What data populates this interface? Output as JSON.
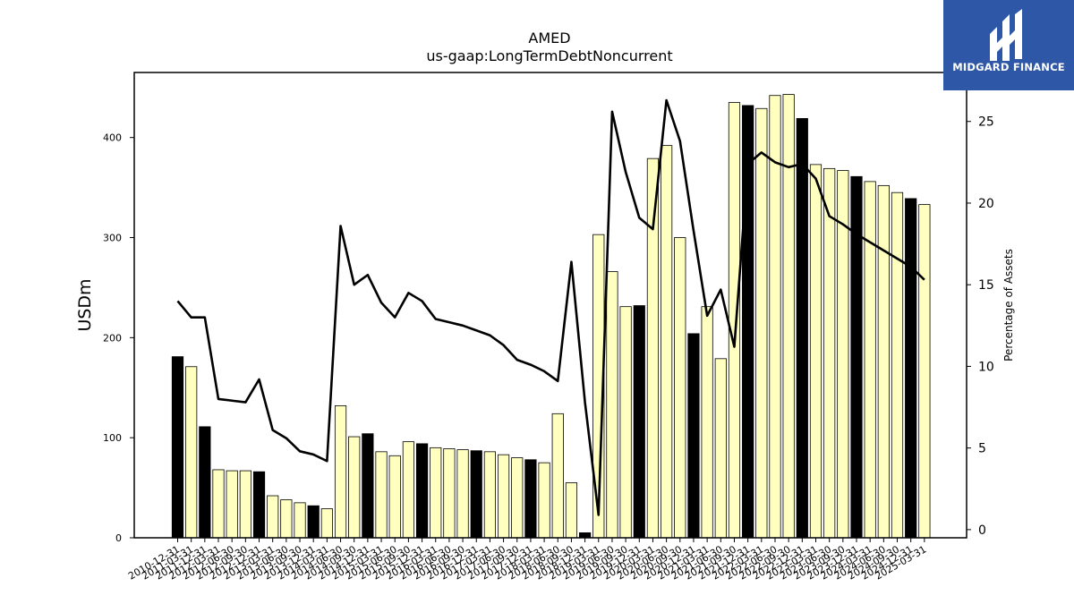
{
  "logo": {
    "text": "MIDGARD FINANCE",
    "background": "#2e57a8"
  },
  "chart_data": {
    "type": "bar",
    "title": "AMED",
    "subtitle": "us-gaap:LongTermDebtNoncurrent",
    "ylabel": "USDm",
    "y2label": "Percentage of Assets",
    "ylim": [
      0,
      465
    ],
    "y2lim": [
      -0.5,
      28
    ],
    "yticks": [
      0,
      100,
      200,
      300,
      400
    ],
    "y2ticks": [
      0,
      5,
      10,
      15,
      20,
      25
    ],
    "colors": {
      "annual_bar": "#000000",
      "quarter_bar": "#ffffc0",
      "line": "#000000"
    },
    "categories": [
      "2010-12-31",
      "2011-03-31",
      "2011-12-31",
      "2012-03-31",
      "2012-06-30",
      "2012-09-30",
      "2012-12-31",
      "2013-03-31",
      "2013-06-30",
      "2013-09-30",
      "2013-12-31",
      "2014-03-31",
      "2014-06-30",
      "2014-09-30",
      "2014-12-31",
      "2015-03-31",
      "2015-06-30",
      "2015-09-30",
      "2015-12-31",
      "2016-03-31",
      "2016-06-30",
      "2016-09-30",
      "2016-12-31",
      "2017-03-31",
      "2017-06-30",
      "2017-09-30",
      "2017-12-31",
      "2018-03-31",
      "2018-06-30",
      "2018-09-30",
      "2018-12-31",
      "2019-03-31",
      "2019-06-30",
      "2019-09-30",
      "2019-12-31",
      "2020-03-31",
      "2020-06-30",
      "2020-09-30",
      "2020-12-31",
      "2021-03-31",
      "2021-06-30",
      "2021-09-30",
      "2021-12-31",
      "2022-03-31",
      "2022-06-30",
      "2022-09-30",
      "2022-12-31",
      "2023-03-31",
      "2023-06-30",
      "2023-09-30",
      "2023-12-31",
      "2024-03-31",
      "2024-06-30",
      "2024-09-30",
      "2024-12-31",
      "2025-03-31"
    ],
    "series": [
      {
        "name": "LongTermDebtNoncurrent",
        "axis": "left",
        "values": [
          181,
          171,
          111,
          68,
          67,
          67,
          66,
          42,
          38,
          35,
          32,
          29,
          132,
          101,
          104,
          86,
          82,
          96,
          94,
          90,
          89,
          88,
          87,
          86,
          83,
          80,
          78,
          75,
          124,
          55,
          5,
          303,
          266,
          231,
          232,
          379,
          392,
          300,
          204,
          231,
          179,
          435,
          432,
          429,
          442,
          443,
          419,
          373,
          369,
          367,
          361,
          356,
          352,
          345,
          339,
          333
        ],
        "annual": [
          true,
          false,
          true,
          false,
          false,
          false,
          true,
          false,
          false,
          false,
          true,
          false,
          false,
          false,
          true,
          false,
          false,
          false,
          true,
          false,
          false,
          false,
          true,
          false,
          false,
          false,
          true,
          false,
          false,
          false,
          true,
          false,
          false,
          false,
          true,
          false,
          false,
          false,
          true,
          false,
          false,
          false,
          true,
          false,
          false,
          false,
          true,
          false,
          false,
          false,
          true,
          false,
          false,
          false,
          true,
          false
        ]
      },
      {
        "name": "Percentage of Assets",
        "axis": "right",
        "type": "line",
        "values": [
          14.0,
          13.0,
          13.0,
          8.0,
          7.9,
          7.8,
          9.2,
          6.1,
          5.6,
          4.8,
          4.6,
          4.2,
          18.6,
          15.0,
          15.6,
          13.9,
          13.0,
          14.5,
          14.0,
          12.9,
          12.7,
          12.5,
          12.2,
          11.9,
          11.3,
          10.4,
          10.1,
          9.7,
          9.1,
          16.4,
          7.8,
          0.9,
          25.6,
          21.9,
          19.1,
          18.4,
          26.3,
          23.8,
          18.3,
          13.1,
          14.7,
          11.2,
          22.4,
          23.1,
          22.5,
          22.2,
          22.4,
          21.5,
          19.2,
          18.7,
          18.1,
          17.6,
          17.1,
          16.6,
          16.1,
          15.3
        ]
      }
    ]
  }
}
